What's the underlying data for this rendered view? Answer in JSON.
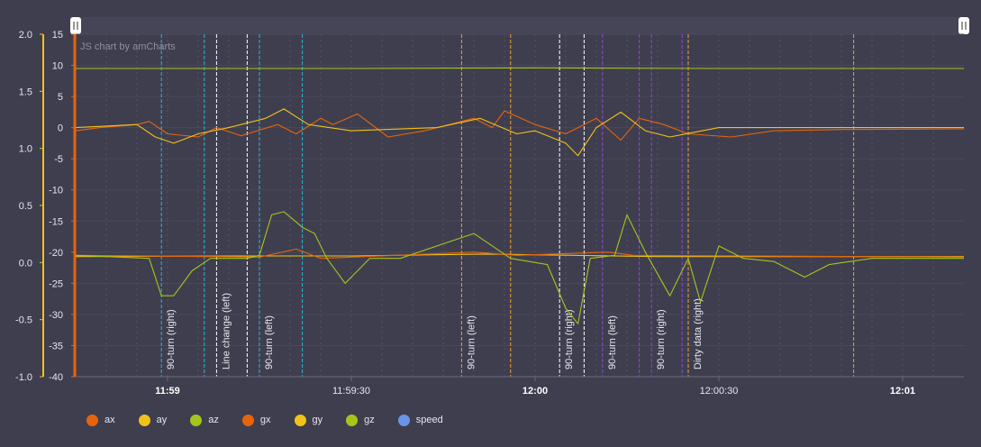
{
  "chart_data": {
    "type": "line",
    "credit": "JS chart by amCharts",
    "left_axis_outer": {
      "ticks": [
        "2.0",
        "1.5",
        "1.0",
        "0.5",
        "0.0",
        "-0.5",
        "-1.0"
      ],
      "ylim": [
        -1.0,
        2.0
      ],
      "color": "#f0c21a"
    },
    "left_axis_inner": {
      "ticks": [
        "15",
        "10",
        "5",
        "0",
        "-5",
        "-10",
        "-15",
        "-20",
        "-25",
        "-30",
        "-35",
        "-40"
      ],
      "ylim": [
        -40,
        15
      ],
      "color": "#e8640c"
    },
    "x_axis": {
      "start": "11:58:45",
      "end": "12:01:10",
      "labels": [
        {
          "t": "11:59",
          "text": "11:59",
          "bold": true
        },
        {
          "t": "11:59:30",
          "text": "11:59:30",
          "bold": false
        },
        {
          "t": "12:00",
          "text": "12:00",
          "bold": true
        },
        {
          "t": "12:00:30",
          "text": "12:00:30",
          "bold": false
        },
        {
          "t": "12:01",
          "text": "12:01",
          "bold": true
        }
      ]
    },
    "series": [
      {
        "name": "ax",
        "color": "#e8640c"
      },
      {
        "name": "ay",
        "color": "#f0c21a"
      },
      {
        "name": "az",
        "color": "#a4c61a"
      },
      {
        "name": "gx",
        "color": "#e8640c"
      },
      {
        "name": "gy",
        "color": "#f0c21a"
      },
      {
        "name": "gz",
        "color": "#a4c61a"
      },
      {
        "name": "speed",
        "color": "#6b93e8"
      }
    ],
    "series_values": {
      "az": {
        "axis": "inner",
        "points": [
          [
            "11:58:45",
            9.5
          ],
          [
            "11:59:30",
            9.5
          ],
          [
            "12:00",
            9.6
          ],
          [
            "12:00:30",
            9.5
          ],
          [
            "12:01:10",
            9.5
          ]
        ]
      },
      "ax": {
        "axis": "inner",
        "points": [
          [
            "11:58:45",
            -0.5
          ],
          [
            "11:58:49",
            0
          ],
          [
            "11:58:55",
            0.5
          ],
          [
            "11:58:57",
            1
          ],
          [
            "11:59",
            -1
          ],
          [
            "11:59:05",
            -1.5
          ],
          [
            "11:59:08",
            0
          ],
          [
            "11:59:12",
            -1.3
          ],
          [
            "11:59:18",
            0.5
          ],
          [
            "11:59:21",
            -1
          ],
          [
            "11:59:25",
            1.5
          ],
          [
            "11:59:27",
            0.5
          ],
          [
            "11:59:31",
            2.2
          ],
          [
            "11:59:36",
            -1.5
          ],
          [
            "11:59:42",
            -0.5
          ],
          [
            "11:59:50",
            1.5
          ],
          [
            "11:59:53",
            0
          ],
          [
            "11:59:55",
            2.7
          ],
          [
            "12:00",
            0.5
          ],
          [
            "12:00:05",
            -1
          ],
          [
            "12:00:10",
            1.5
          ],
          [
            "12:00:14",
            -2
          ],
          [
            "12:00:17",
            1.5
          ],
          [
            "12:00:21",
            0.5
          ],
          [
            "12:00:25",
            -1
          ],
          [
            "12:00:32",
            -1.5
          ],
          [
            "12:00:39",
            -0.5
          ],
          [
            "12:00:50",
            -0.3
          ],
          [
            "12:01:10",
            -0.2
          ]
        ]
      },
      "ay": {
        "axis": "inner",
        "points": [
          [
            "11:58:45",
            0
          ],
          [
            "11:58:55",
            0.5
          ],
          [
            "11:58:58",
            -1.5
          ],
          [
            "11:59:01",
            -2.5
          ],
          [
            "11:59:05",
            -1
          ],
          [
            "11:59:10",
            0
          ],
          [
            "11:59:16",
            1.5
          ],
          [
            "11:59:19",
            3
          ],
          [
            "11:59:23",
            0.5
          ],
          [
            "11:59:30",
            -0.5
          ],
          [
            "11:59:44",
            0
          ],
          [
            "11:59:51",
            1.5
          ],
          [
            "11:59:57",
            -1
          ],
          [
            "12:00",
            -0.5
          ],
          [
            "12:00:05",
            -2.5
          ],
          [
            "12:00:07",
            -4.5
          ],
          [
            "12:00:10",
            0
          ],
          [
            "12:00:14",
            2.5
          ],
          [
            "12:00:18",
            -0.5
          ],
          [
            "12:00:22",
            -1.5
          ],
          [
            "12:00:30",
            0
          ],
          [
            "12:00:50",
            0
          ],
          [
            "12:01:10",
            0
          ]
        ]
      },
      "gz": {
        "axis": "inner",
        "points": [
          [
            "11:58:45",
            -20.5
          ],
          [
            "11:58:57",
            -21
          ],
          [
            "11:58:59",
            -27
          ],
          [
            "11:59:01",
            -27
          ],
          [
            "11:59:04",
            -23
          ],
          [
            "11:59:07",
            -21
          ],
          [
            "11:59:13",
            -21
          ],
          [
            "11:59:15",
            -20.5
          ],
          [
            "11:59:17",
            -14
          ],
          [
            "11:59:19",
            -13.5
          ],
          [
            "11:59:22",
            -16
          ],
          [
            "11:59:24",
            -17
          ],
          [
            "11:59:26",
            -21
          ],
          [
            "11:59:29",
            -25
          ],
          [
            "11:59:33",
            -21
          ],
          [
            "11:59:38",
            -21
          ],
          [
            "11:59:50",
            -17
          ],
          [
            "11:59:56",
            -21
          ],
          [
            "12:00:02",
            -22
          ],
          [
            "12:00:05",
            -29
          ],
          [
            "12:00:07",
            -31.5
          ],
          [
            "12:00:09",
            -21
          ],
          [
            "12:00:13",
            -20.5
          ],
          [
            "12:00:15",
            -14
          ],
          [
            "12:00:18",
            -20
          ],
          [
            "12:00:22",
            -27
          ],
          [
            "12:00:25",
            -21
          ],
          [
            "12:00:27",
            -28
          ],
          [
            "12:00:30",
            -19
          ],
          [
            "12:00:34",
            -21
          ],
          [
            "12:00:39",
            -21.5
          ],
          [
            "12:00:44",
            -24
          ],
          [
            "12:00:48",
            -22
          ],
          [
            "12:00:55",
            -21
          ],
          [
            "12:01:10",
            -21
          ]
        ]
      },
      "gx": {
        "axis": "inner",
        "points": [
          [
            "11:58:45",
            -20.5
          ],
          [
            "11:59:15",
            -20.8
          ],
          [
            "11:59:21",
            -19.5
          ],
          [
            "11:59:25",
            -21
          ],
          [
            "11:59:50",
            -20
          ],
          [
            "11:59:57",
            -20.5
          ],
          [
            "12:00:12",
            -20
          ],
          [
            "12:00:16",
            -20.5
          ],
          [
            "12:01:10",
            -20.8
          ]
        ]
      },
      "gy": {
        "axis": "inner",
        "points": [
          [
            "11:58:45",
            -20.7
          ],
          [
            "11:59:10",
            -20.6
          ],
          [
            "11:59:30",
            -20.6
          ],
          [
            "11:59:52",
            -20.3
          ],
          [
            "12:00:20",
            -20.7
          ],
          [
            "12:01:10",
            -20.7
          ]
        ]
      }
    },
    "guides": [
      {
        "t": "11:58:59",
        "end": "11:59:06",
        "label": "90-turn (right)",
        "color": "#27b7d6"
      },
      {
        "t": "11:59:08",
        "end": "11:59:13",
        "label": "Line change (left)",
        "color": "#ffffff"
      },
      {
        "t": "11:59:15",
        "end": "11:59:22",
        "label": "90-turn (left)",
        "color": "#27b7d6"
      },
      {
        "t": "11:59:48",
        "end": "11:59:56",
        "label": "90-turn (left)",
        "color": "#f0a030"
      },
      {
        "t": "12:00:04",
        "end": "12:00:08",
        "label": "90-turn (right)",
        "color": "#ffffff"
      },
      {
        "t": "12:00:11",
        "end": "12:00:17",
        "label": "90-turn (left)",
        "color": "#8a48d8"
      },
      {
        "t": "12:00:19",
        "end": "12:00:24",
        "label": "90-turn (right)",
        "color": "#8a48d8"
      },
      {
        "t": "12:00:25",
        "end": "12:00:52",
        "label": "Dirty data (right)",
        "color": "#f0a030"
      }
    ]
  },
  "legend": [
    {
      "label": "ax",
      "color": "#e8640c"
    },
    {
      "label": "ay",
      "color": "#f0c21a"
    },
    {
      "label": "az",
      "color": "#a4c61a"
    },
    {
      "label": "gx",
      "color": "#e8640c"
    },
    {
      "label": "gy",
      "color": "#f0c21a"
    },
    {
      "label": "gz",
      "color": "#a4c61a"
    },
    {
      "label": "speed",
      "color": "#6b93e8"
    }
  ]
}
